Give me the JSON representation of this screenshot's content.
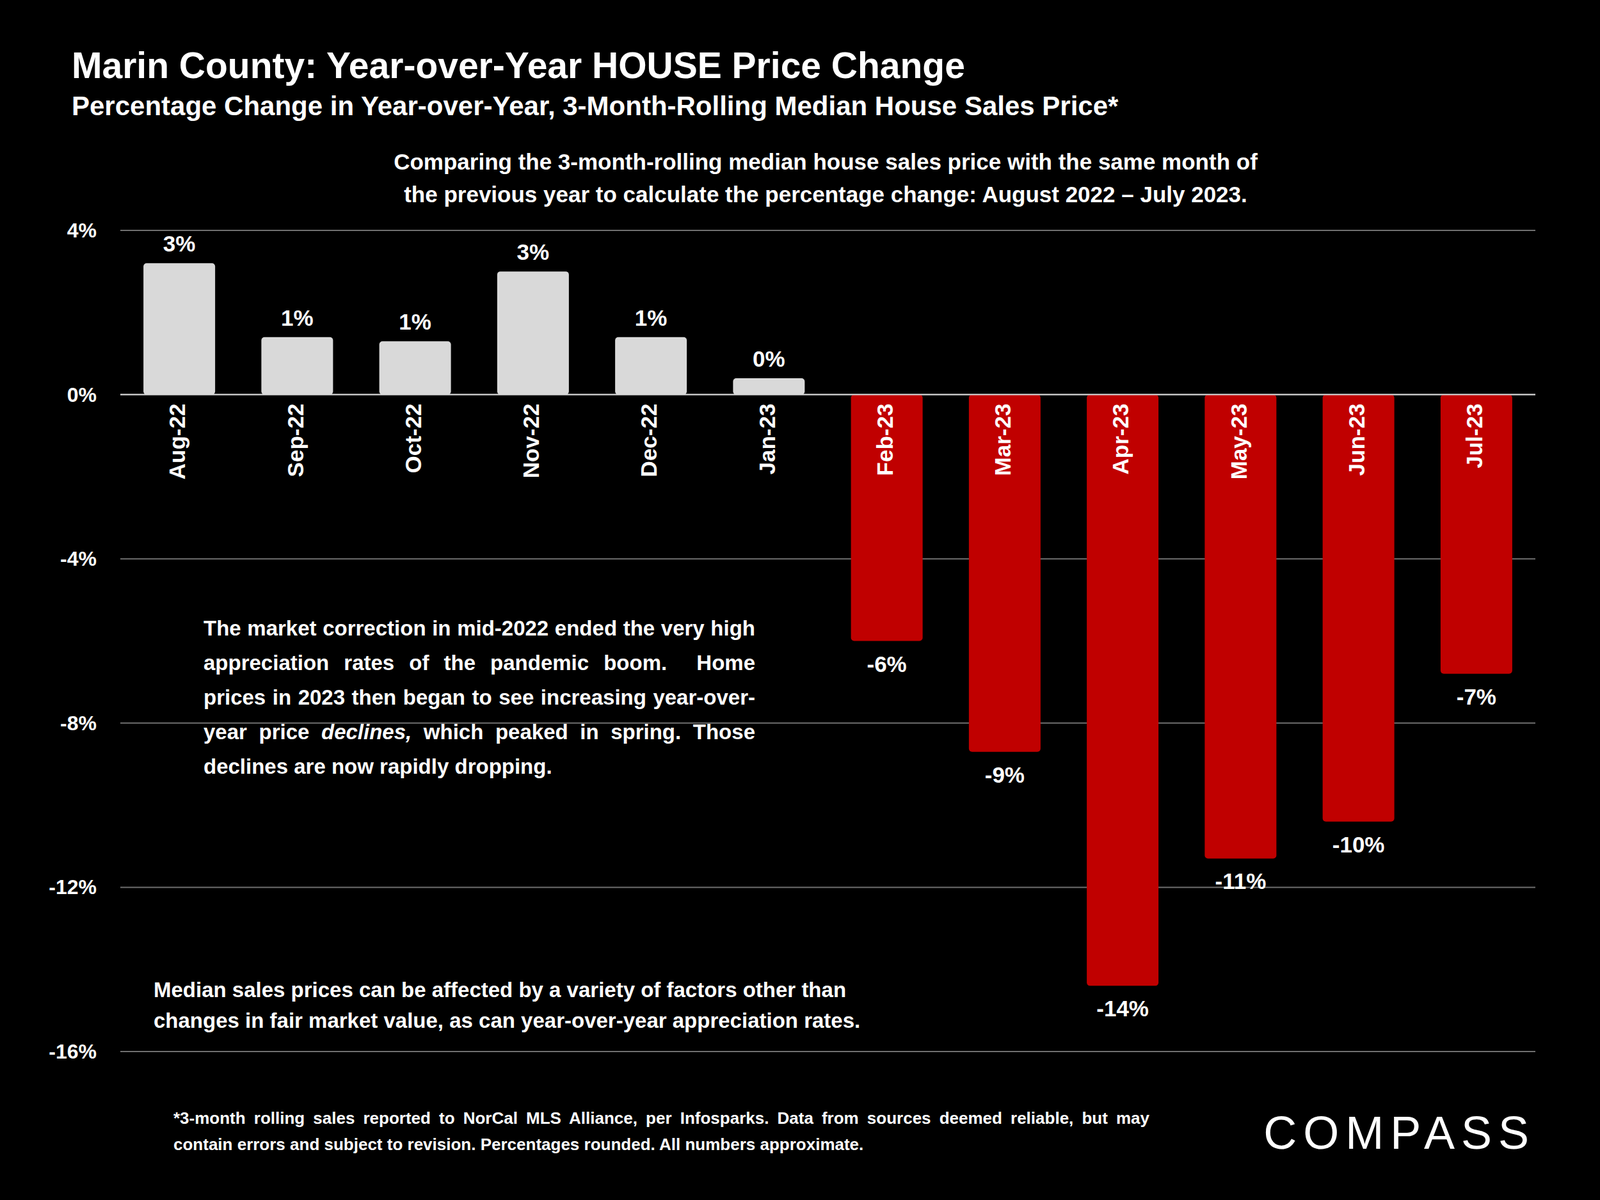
{
  "chart_data": {
    "type": "bar",
    "title": "Marin County: Year-over-Year HOUSE Price Change",
    "subtitle": "Percentage Change in Year-over-Year, 3-Month-Rolling Median House Sales Price*",
    "description": [
      "Comparing the 3-month-rolling median house sales price with the same month of",
      "the previous year to calculate the percentage change: August 2022 – July 2023."
    ],
    "categories": [
      "Aug-22",
      "Sep-22",
      "Oct-22",
      "Nov-22",
      "Dec-22",
      "Jan-23",
      "Feb-23",
      "Mar-23",
      "Apr-23",
      "May-23",
      "Jun-23",
      "Jul-23"
    ],
    "values": [
      3.2,
      1.4,
      1.3,
      3.0,
      1.4,
      0.4,
      -6.0,
      -8.7,
      -14.4,
      -11.3,
      -10.4,
      -6.8
    ],
    "value_labels": [
      "3%",
      "1%",
      "1%",
      "3%",
      "1%",
      "0%",
      "-6%",
      "-9%",
      "-14%",
      "-11%",
      "-10%",
      "-7%"
    ],
    "colors": [
      "#d9d9d9",
      "#d9d9d9",
      "#d9d9d9",
      "#d9d9d9",
      "#d9d9d9",
      "#d9d9d9",
      "#c00000",
      "#c00000",
      "#c00000",
      "#c00000",
      "#c00000",
      "#c00000"
    ],
    "data_labels": true,
    "ylim": [
      -16,
      4
    ],
    "yticks": [
      {
        "value": -16,
        "label": "-16%"
      },
      {
        "value": -12,
        "label": "-12%"
      },
      {
        "value": -8,
        "label": "-8%"
      },
      {
        "value": -4,
        "label": "-4%"
      },
      {
        "value": 0,
        "label": "0%"
      },
      {
        "value": 4,
        "label": "4%"
      }
    ],
    "grid": true,
    "annotation": [
      "The market correction in mid-2022 ended the very high appreciation rates of the pandemic boom.  Home prices in 2023 then began to see increasing year-over-year price ",
      "declines,",
      " which peaked in spring. Those declines are now rapidly dropping."
    ],
    "note": [
      "Median sales prices can be affected by a variety of factors other than",
      "changes in fair market value, as can year-over-year appreciation rates."
    ],
    "footnote": "*3-month rolling sales reported to NorCal MLS Alliance, per Infosparks. Data from sources deemed reliable, but may contain errors and subject to revision. Percentages rounded. All numbers approximate.",
    "logo": "COMPASS"
  }
}
